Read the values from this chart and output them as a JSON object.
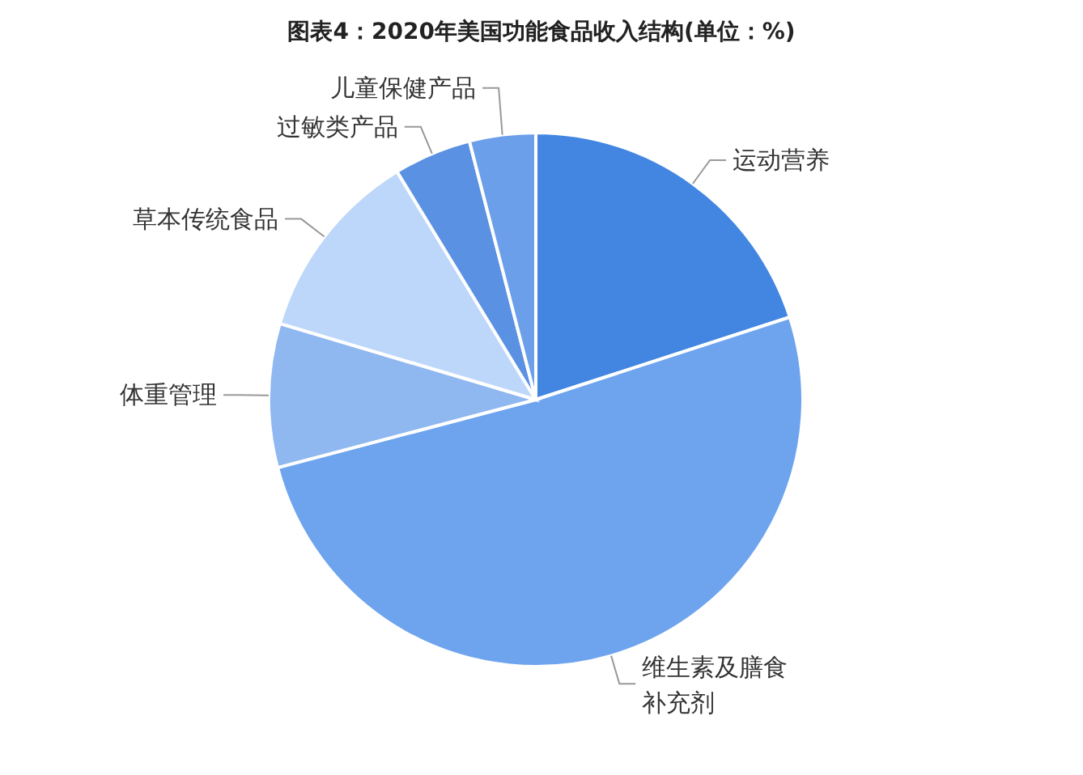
{
  "chart_data": {
    "type": "pie",
    "title": "图表4：2020年美国功能食品收入结构(单位：%)",
    "categories": [
      "运动营养",
      "维生素及膳食补充剂",
      "体重管理",
      "草本传统食品",
      "过敏类产品",
      "儿童保健产品"
    ],
    "values": [
      20.0,
      50.9,
      8.7,
      11.7,
      4.7,
      4.0
    ],
    "colors": [
      "#4286e2",
      "#6ea4ee",
      "#8fb7f0",
      "#bdd7fa",
      "#5b91e3",
      "#6b9fe9"
    ]
  }
}
